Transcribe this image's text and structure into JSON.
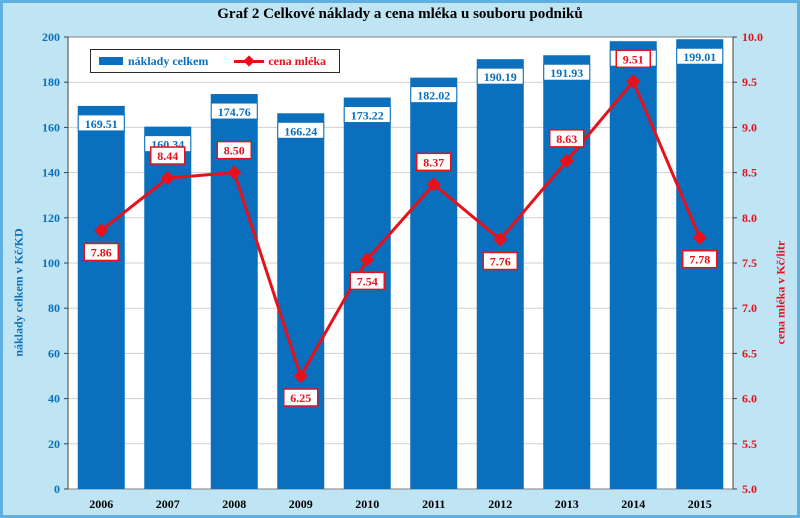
{
  "chart_data": {
    "type": "bar",
    "title": "Graf 2 Celkové náklady a cena mléka u souboru podniků",
    "categories": [
      "2006",
      "2007",
      "2008",
      "2009",
      "2010",
      "2011",
      "2012",
      "2013",
      "2014",
      "2015"
    ],
    "series": [
      {
        "name": "náklady celkem",
        "type": "bar",
        "axis": "left",
        "values": [
          169.51,
          160.34,
          174.76,
          166.24,
          173.22,
          182.02,
          190.19,
          191.93,
          198.15,
          199.01
        ],
        "labels": [
          "169.51",
          "160.34",
          "174.76",
          "166.24",
          "173.22",
          "182.02",
          "190.19",
          "191.93",
          "198.15",
          "199.01"
        ]
      },
      {
        "name": "cena mléka",
        "type": "line",
        "axis": "right",
        "values": [
          7.86,
          8.44,
          8.5,
          6.25,
          7.54,
          8.37,
          7.76,
          8.63,
          9.51,
          7.78
        ],
        "labels": [
          "7.86",
          "8.44",
          "8.50",
          "6.25",
          "7.54",
          "8.37",
          "7.76",
          "8.63",
          "9.51",
          "7.78"
        ]
      }
    ],
    "ylabel_left": "náklady celkem  v Kč/KD",
    "ylabel_right": "cena mléka  v Kč/litr",
    "ylim_left": [
      0,
      200
    ],
    "ylim_right": [
      5.0,
      10.0
    ],
    "yticks_left": [
      "0",
      "20",
      "40",
      "60",
      "80",
      "100",
      "120",
      "140",
      "160",
      "180",
      "200"
    ],
    "yticks_right": [
      "5.0",
      "5.5",
      "6.0",
      "6.5",
      "7.0",
      "7.5",
      "8.0",
      "8.5",
      "9.0",
      "9.5",
      "10.0"
    ],
    "grid": true,
    "legend_position": "top-left",
    "colors": {
      "bar": "#0a6fbd",
      "line": "#e8101a",
      "plot_background": "#ffffff",
      "page_background": "#bfe4f4",
      "left_axis_text": "#0a6fbd",
      "right_axis_text": "#e8101a"
    }
  }
}
